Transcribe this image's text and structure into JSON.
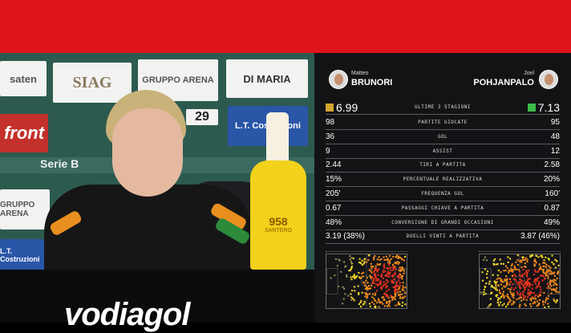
{
  "photo": {
    "sponsors": [
      "saten",
      "SIAG",
      "GRUPPO ARENA",
      "DI MARIA",
      "front",
      "29",
      "L.T. Costruzioni",
      "Serie B",
      "GRUPPO ARENA",
      "L.T. Costruzioni"
    ],
    "bottle_label": "958",
    "bottle_sub": "SANTERO",
    "desk_logo": "vodiagol"
  },
  "panel": {
    "left": {
      "first": "Matteo",
      "last": "BRUNORI",
      "rating": "6.99",
      "rating_color": "#d4a72c"
    },
    "right": {
      "first": "Joel",
      "last": "POHJANPALO",
      "rating": "7.13",
      "rating_color": "#3dbb4a"
    },
    "rating_label": "ULTIME 3 STAGIONI",
    "rows": [
      {
        "label": "PARTITE GIOCATE",
        "left": "98",
        "right": "95"
      },
      {
        "label": "GOL",
        "left": "36",
        "right": "48"
      },
      {
        "label": "ASSIST",
        "left": "9",
        "right": "12"
      },
      {
        "label": "TIRI A PARTITA",
        "left": "2.44",
        "right": "2.58"
      },
      {
        "label": "PERCENTUALE REALIZZATIVA",
        "left": "15%",
        "right": "20%"
      },
      {
        "label": "FREQUENZA GOL",
        "left": "205'",
        "right": "160'"
      },
      {
        "label": "PASSAGGI CHIAVE A PARTITA",
        "left": "0.67",
        "right": "0.87"
      },
      {
        "label": "CONVERSIONE DI GRANDI OCCASIONI",
        "left": "48%",
        "right": "49%"
      },
      {
        "label": "DUELLI VINTI A PARTITA",
        "left": "3.19 (38%)",
        "right": "3.87 (46%)"
      }
    ]
  }
}
